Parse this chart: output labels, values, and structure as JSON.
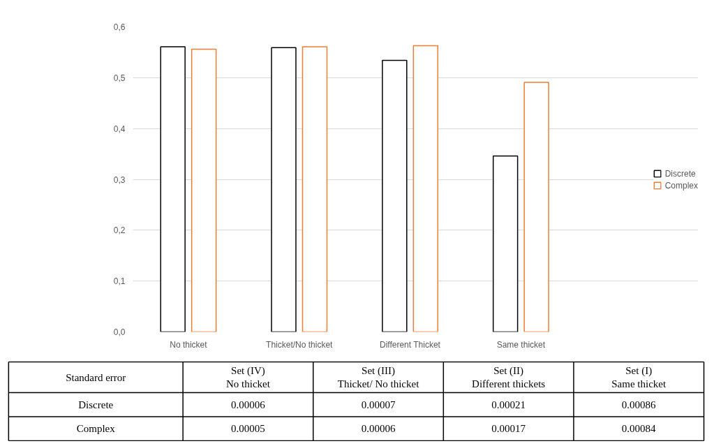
{
  "chart_data": {
    "type": "bar",
    "categories": [
      "No thicket",
      "Thicket/No thicket",
      "Different Thicket",
      "Same thicket"
    ],
    "series": [
      {
        "name": "Discrete",
        "color": "#000000",
        "values": [
          0.561,
          0.559,
          0.534,
          0.346
        ]
      },
      {
        "name": "Complex",
        "color": "#ed7d31",
        "values": [
          0.556,
          0.561,
          0.563,
          0.491
        ]
      }
    ],
    "ylim": [
      0,
      0.6
    ],
    "yticks": [
      {
        "value": 0,
        "label": "0,0"
      },
      {
        "value": 0.1,
        "label": "0,1"
      },
      {
        "value": 0.2,
        "label": "0,2"
      },
      {
        "value": 0.3,
        "label": "0,3"
      },
      {
        "value": 0.4,
        "label": "0,4"
      },
      {
        "value": 0.5,
        "label": "0,5"
      },
      {
        "value": 0.6,
        "label": "0,6"
      }
    ],
    "grid": "y",
    "legend": "right",
    "annotations": [
      "Standard error",
      "Set (IV)\nNo thicket",
      "Set (III)\nThicket/ No thicket",
      "Set (II)\nDifferent thickets",
      "Set (I)\nSame thicket",
      "Discrete",
      "0.00006",
      "0.00007",
      "0.00021",
      "0.00086",
      "Complex",
      "0.00005",
      "0.00006",
      "0.00017",
      "0.00084"
    ]
  }
}
